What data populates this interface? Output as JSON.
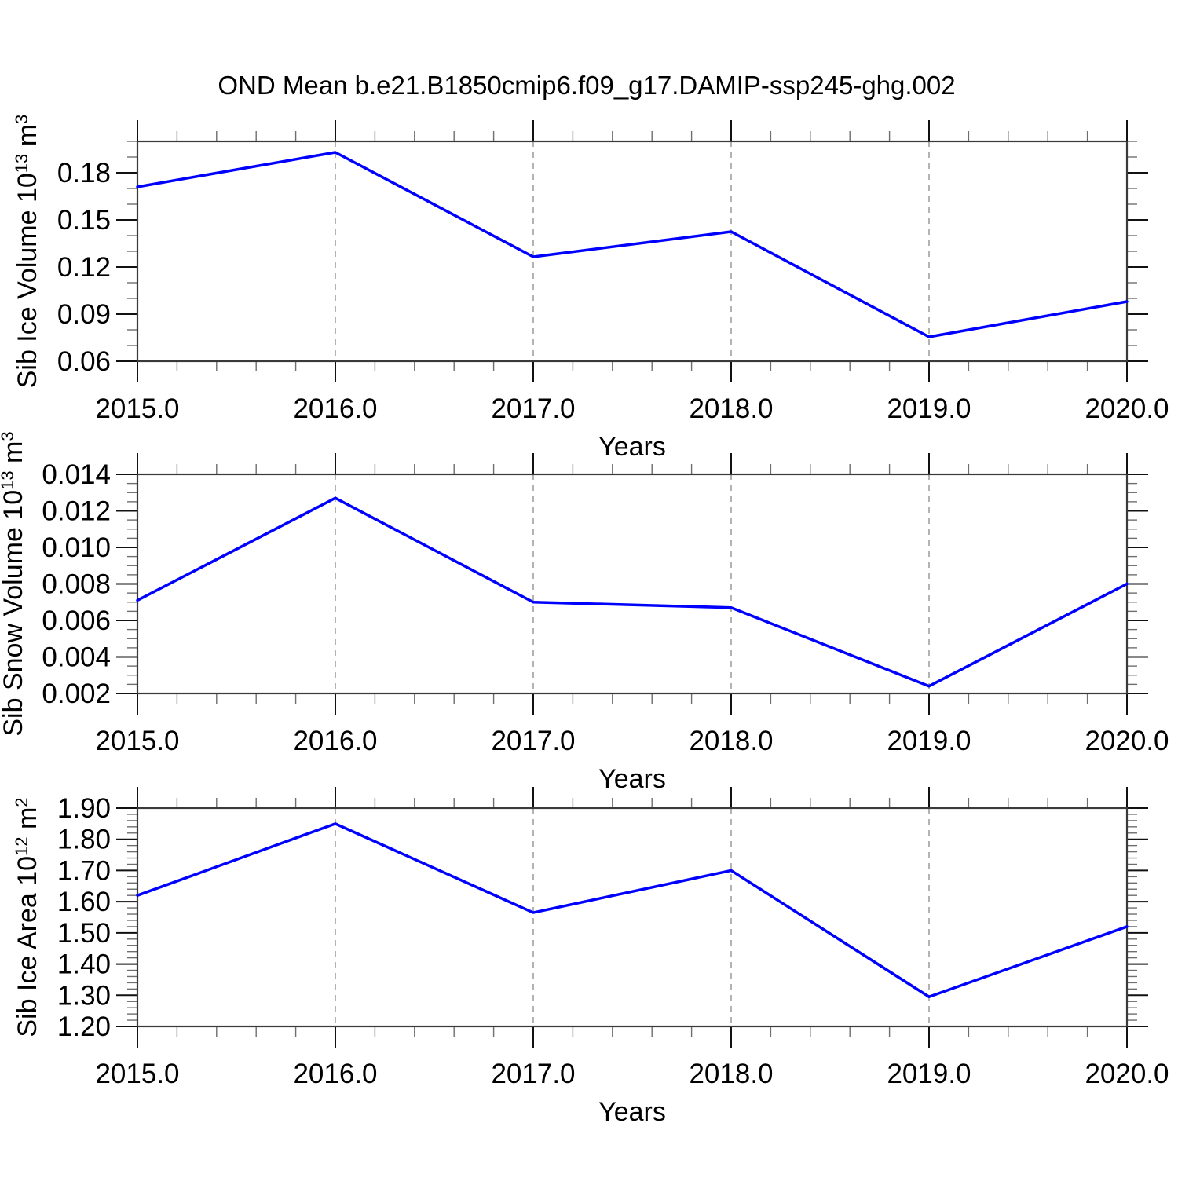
{
  "title": "OND Mean b.e21.B1850cmip6.f09_g17.DAMIP-ssp245-ghg.002",
  "colors": {
    "line": "#0000ff",
    "frame": "#3a3a3a",
    "tick_major": "#111111",
    "tick_minor": "#6e6e6e",
    "grid": "#9a9a9a",
    "text": "#000000",
    "background": "#ffffff"
  },
  "chart_data": [
    {
      "type": "line",
      "panel": "top",
      "ylabel": "Sib Ice Volume 10^13 m^3",
      "xlabel": "Years",
      "x": [
        2015,
        2016,
        2017,
        2018,
        2019,
        2020
      ],
      "xtick_labels": [
        "2015.0",
        "2016.0",
        "2017.0",
        "2018.0",
        "2019.0",
        "2020.0"
      ],
      "xlim": [
        2015,
        2020
      ],
      "x_minor_step": 0.2,
      "gridlines_x": [
        2016,
        2017,
        2018,
        2019
      ],
      "grid": "vertical-dashed",
      "legend": "none",
      "ylim": [
        0.06,
        0.2
      ],
      "ytick_values": [
        0.06,
        0.09,
        0.12,
        0.15,
        0.18
      ],
      "ytick_labels": [
        "0.06",
        "0.09",
        "0.12",
        "0.15",
        "0.18"
      ],
      "y_minor_step": 0.01,
      "series": [
        {
          "name": "Sib Ice Volume",
          "values": [
            0.171,
            0.193,
            0.1265,
            0.1425,
            0.0755,
            0.098
          ]
        }
      ]
    },
    {
      "type": "line",
      "panel": "middle",
      "ylabel": "Sib Snow Volume 10^13 m^3",
      "xlabel": "Years",
      "x": [
        2015,
        2016,
        2017,
        2018,
        2019,
        2020
      ],
      "xtick_labels": [
        "2015.0",
        "2016.0",
        "2017.0",
        "2018.0",
        "2019.0",
        "2020.0"
      ],
      "xlim": [
        2015,
        2020
      ],
      "x_minor_step": 0.2,
      "gridlines_x": [
        2016,
        2017,
        2018,
        2019
      ],
      "grid": "vertical-dashed",
      "legend": "none",
      "ylim": [
        0.002,
        0.014
      ],
      "ytick_values": [
        0.002,
        0.004,
        0.006,
        0.008,
        0.01,
        0.012,
        0.014
      ],
      "ytick_labels": [
        "0.002",
        "0.004",
        "0.006",
        "0.008",
        "0.010",
        "0.012",
        "0.014"
      ],
      "y_minor_step": 0.0005,
      "series": [
        {
          "name": "Sib Snow Volume",
          "values": [
            0.0071,
            0.0127,
            0.007,
            0.0067,
            0.0024,
            0.008
          ]
        }
      ]
    },
    {
      "type": "line",
      "panel": "bottom",
      "ylabel": "Sib Ice Area 10^12 m^2",
      "xlabel": "Years",
      "x": [
        2015,
        2016,
        2017,
        2018,
        2019,
        2020
      ],
      "xtick_labels": [
        "2015.0",
        "2016.0",
        "2017.0",
        "2018.0",
        "2019.0",
        "2020.0"
      ],
      "xlim": [
        2015,
        2020
      ],
      "x_minor_step": 0.2,
      "gridlines_x": [
        2016,
        2017,
        2018,
        2019
      ],
      "grid": "vertical-dashed",
      "legend": "none",
      "ylim": [
        1.2,
        1.9
      ],
      "ytick_values": [
        1.2,
        1.3,
        1.4,
        1.5,
        1.6,
        1.7,
        1.8,
        1.9
      ],
      "ytick_labels": [
        "1.20",
        "1.30",
        "1.40",
        "1.50",
        "1.60",
        "1.70",
        "1.80",
        "1.90"
      ],
      "y_minor_step": 0.02,
      "series": [
        {
          "name": "Sib Ice Area",
          "values": [
            1.62,
            1.85,
            1.565,
            1.7,
            1.295,
            1.52
          ]
        }
      ]
    }
  ]
}
